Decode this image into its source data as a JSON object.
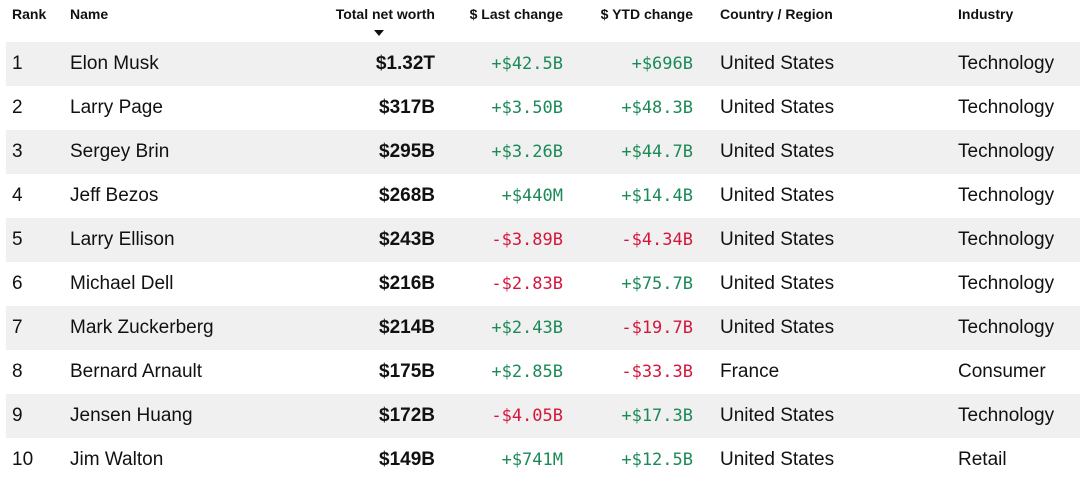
{
  "table": {
    "columns": [
      "Rank",
      "Name",
      "Total net worth",
      "$ Last change",
      "$ YTD change",
      "Country / Region",
      "Industry"
    ],
    "rows": [
      [
        "1",
        "Elon Musk",
        "$1.32T",
        "+$42.5B",
        "+$696B",
        "United States",
        "Technology"
      ],
      [
        "2",
        "Larry Page",
        "$317B",
        "+$3.50B",
        "+$48.3B",
        "United States",
        "Technology"
      ],
      [
        "3",
        "Sergey Brin",
        "$295B",
        "+$3.26B",
        "+$44.7B",
        "United States",
        "Technology"
      ],
      [
        "4",
        "Jeff Bezos",
        "$268B",
        "+$440M",
        "+$14.4B",
        "United States",
        "Technology"
      ],
      [
        "5",
        "Larry Ellison",
        "$243B",
        "-$3.89B",
        "-$4.34B",
        "United States",
        "Technology"
      ],
      [
        "6",
        "Michael Dell",
        "$216B",
        "-$2.83B",
        "+$75.7B",
        "United States",
        "Technology"
      ],
      [
        "7",
        "Mark Zuckerberg",
        "$214B",
        "+$2.43B",
        "-$19.7B",
        "United States",
        "Technology"
      ],
      [
        "8",
        "Bernard Arnault",
        "$175B",
        "+$2.85B",
        "-$33.3B",
        "France",
        "Consumer"
      ],
      [
        "9",
        "Jensen Huang",
        "$172B",
        "-$4.05B",
        "+$17.3B",
        "United States",
        "Technology"
      ],
      [
        "10",
        "Jim Walton",
        "$149B",
        "+$741M",
        "+$12.5B",
        "United States",
        "Retail"
      ]
    ]
  }
}
